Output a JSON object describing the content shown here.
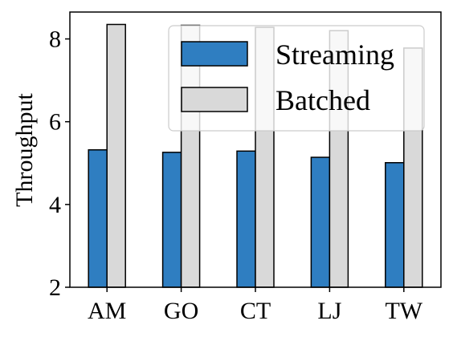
{
  "chart_data": {
    "type": "bar",
    "title": "",
    "xlabel": "",
    "ylabel": "Throughput",
    "categories": [
      "AM",
      "GO",
      "CT",
      "LJ",
      "TW"
    ],
    "series": [
      {
        "name": "Streaming",
        "color": "#2f7ec1",
        "values": [
          5.32,
          5.26,
          5.29,
          5.14,
          5.01
        ]
      },
      {
        "name": "Batched",
        "color": "#d9d9d9",
        "values": [
          8.35,
          8.33,
          8.28,
          8.2,
          7.78
        ]
      }
    ],
    "ylim": [
      2,
      8.65
    ],
    "yticks": [
      "2",
      "4",
      "6",
      "8"
    ],
    "grid": false,
    "legend_position": "top-right"
  }
}
